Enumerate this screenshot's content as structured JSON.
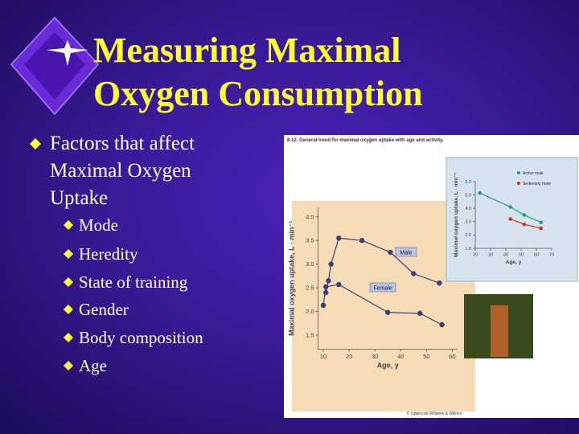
{
  "title": {
    "lines": [
      "Measuring Maximal",
      "Oxygen Consumption"
    ]
  },
  "bullets": [
    {
      "text": "Factors that affect Maximal Oxygen Uptake",
      "sub": [
        "Mode",
        "Heredity",
        "State of training",
        "Gender",
        "Body composition",
        "Age"
      ]
    }
  ],
  "figure": {
    "caption": "8.12. General trend for maximal oxygen uptake with age and activity.",
    "copyright": "© Lippincott Williams & Wilkins"
  },
  "chart_data": [
    {
      "type": "line",
      "x_label": "Age, y",
      "y_label": "Maximal oxygen uptake, L · min⁻¹",
      "xlim": [
        8,
        62
      ],
      "ylim": [
        1.2,
        4.2
      ],
      "xticks": [
        10,
        20,
        30,
        40,
        50,
        60
      ],
      "yticks": [
        1.5,
        {
          "value": 2,
          "label": "2.0"
        },
        2.5,
        {
          "value": 3,
          "label": "3.0"
        },
        3.5,
        {
          "value": 4,
          "label": "4.0"
        }
      ],
      "series": [
        {
          "name": "Male",
          "color": "#3a3f78",
          "x": [
            11,
            12,
            13,
            16,
            25,
            36,
            45,
            55
          ],
          "values": [
            2.4,
            2.65,
            3.0,
            3.55,
            3.5,
            3.25,
            2.8,
            2.6
          ]
        },
        {
          "name": "Female",
          "color": "#3a3f78",
          "x": [
            10,
            11,
            16,
            35,
            47.5,
            56
          ],
          "values": [
            2.13,
            2.52,
            2.57,
            1.98,
            1.96,
            1.72
          ]
        }
      ]
    },
    {
      "type": "line",
      "x_label": "Age, y",
      "y_label": "Maximal oxygen uptake, L · min⁻¹",
      "xlim": [
        20,
        70
      ],
      "ylim": [
        1,
        6
      ],
      "xticks": [
        20,
        30,
        40,
        50,
        60,
        70
      ],
      "yticks": [
        {
          "value": 1,
          "label": "1.0"
        },
        {
          "value": 2,
          "label": "2.0"
        },
        {
          "value": 3,
          "label": "3.0"
        },
        {
          "value": 4,
          "label": "4.0"
        },
        {
          "value": 5,
          "label": "5.0"
        },
        {
          "value": 6,
          "label": "6.0"
        }
      ],
      "series": [
        {
          "name": "Active male",
          "color": "#1a9a80",
          "x": [
            23,
            43,
            52,
            63
          ],
          "values": [
            5.15,
            4.1,
            3.5,
            2.95
          ]
        },
        {
          "name": "Sedentary male",
          "color": "#c0392b",
          "x": [
            43,
            52,
            63
          ],
          "values": [
            3.2,
            2.8,
            2.5
          ]
        }
      ]
    }
  ]
}
